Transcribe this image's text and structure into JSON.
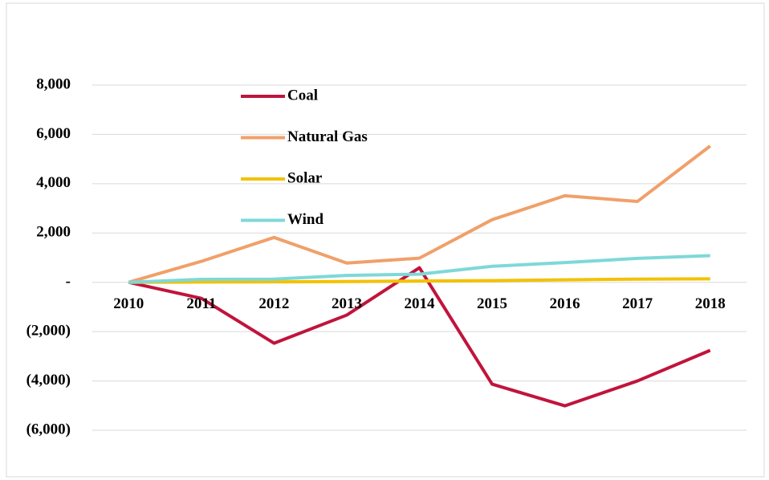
{
  "chart_data": {
    "type": "line",
    "categories": [
      "2010",
      "2011",
      "2012",
      "2013",
      "2014",
      "2015",
      "2016",
      "2017",
      "2018"
    ],
    "series": [
      {
        "name": "Coal",
        "color": "#c0143c",
        "values": [
          0,
          -650,
          -2470,
          -1330,
          590,
          -4130,
          -5010,
          -4000,
          -2760
        ]
      },
      {
        "name": "Natural Gas",
        "color": "#f0a06a",
        "values": [
          0,
          850,
          1820,
          780,
          980,
          2540,
          3510,
          3280,
          5530
        ]
      },
      {
        "name": "Solar",
        "color": "#f2c200",
        "values": [
          0,
          10,
          20,
          30,
          50,
          70,
          100,
          130,
          140
        ]
      },
      {
        "name": "Wind",
        "color": "#7fd8d8",
        "values": [
          0,
          120,
          130,
          280,
          330,
          650,
          800,
          970,
          1080
        ]
      }
    ],
    "ylim": [
      -6000,
      8000
    ],
    "yticks": [
      {
        "value": -6000,
        "label": "(6,000)"
      },
      {
        "value": -4000,
        "label": "(4,000)"
      },
      {
        "value": -2000,
        "label": "(2,000)"
      },
      {
        "value": 0,
        "label": "-"
      },
      {
        "value": 2000,
        "label": "2,000"
      },
      {
        "value": 4000,
        "label": "4,000"
      },
      {
        "value": 6000,
        "label": "6,000"
      },
      {
        "value": 8000,
        "label": "8,000"
      }
    ],
    "grid": true,
    "legend": "upper left"
  }
}
